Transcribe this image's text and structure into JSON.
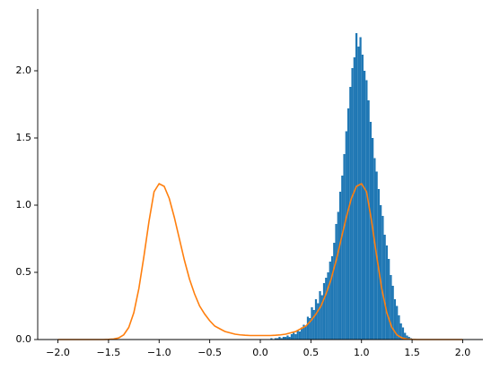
{
  "chart_data": {
    "type": "histogram",
    "xlim": [
      -2.2,
      2.2
    ],
    "ylim": [
      0,
      2.46
    ],
    "xticks": [
      {
        "value": -2.0,
        "label": "−2.0"
      },
      {
        "value": -1.5,
        "label": "−1.5"
      },
      {
        "value": -1.0,
        "label": "−1.0"
      },
      {
        "value": -0.5,
        "label": "−0.5"
      },
      {
        "value": 0.0,
        "label": "0.0"
      },
      {
        "value": 0.5,
        "label": "0.5"
      },
      {
        "value": 1.0,
        "label": "1.0"
      },
      {
        "value": 1.5,
        "label": "1.5"
      },
      {
        "value": 2.0,
        "label": "2.0"
      }
    ],
    "yticks": [
      {
        "value": 0.0,
        "label": "0.0"
      },
      {
        "value": 0.5,
        "label": "0.5"
      },
      {
        "value": 1.0,
        "label": "1.0"
      },
      {
        "value": 1.5,
        "label": "1.5"
      },
      {
        "value": 2.0,
        "label": "2.0"
      }
    ],
    "layers": [
      {
        "type": "histogram",
        "color": "#1f77b4",
        "bins": [
          0.1,
          0.12,
          0.14,
          0.16,
          0.18,
          0.2,
          0.22,
          0.24,
          0.26,
          0.28,
          0.3,
          0.32,
          0.34,
          0.36,
          0.38,
          0.4,
          0.42,
          0.44,
          0.46,
          0.48,
          0.5,
          0.52,
          0.54,
          0.56,
          0.58,
          0.6,
          0.62,
          0.64,
          0.66,
          0.68,
          0.7,
          0.72,
          0.74,
          0.76,
          0.78,
          0.8,
          0.82,
          0.84,
          0.86,
          0.88,
          0.9,
          0.92,
          0.94,
          0.96,
          0.98,
          1.0,
          1.02,
          1.04,
          1.06,
          1.08,
          1.1,
          1.12,
          1.14,
          1.16,
          1.18,
          1.2,
          1.22,
          1.24,
          1.26,
          1.28,
          1.3,
          1.32,
          1.34,
          1.36,
          1.38,
          1.4,
          1.42,
          1.44,
          1.46,
          1.48,
          1.5
        ],
        "values": [
          0.01,
          0,
          0.01,
          0.01,
          0.02,
          0.01,
          0.02,
          0.02,
          0.03,
          0.02,
          0.04,
          0.05,
          0.04,
          0.07,
          0.06,
          0.09,
          0.11,
          0.1,
          0.17,
          0.16,
          0.24,
          0.22,
          0.3,
          0.27,
          0.36,
          0.33,
          0.42,
          0.46,
          0.5,
          0.58,
          0.62,
          0.72,
          0.86,
          0.95,
          1.1,
          1.22,
          1.38,
          1.55,
          1.72,
          1.88,
          2.02,
          2.1,
          2.28,
          2.18,
          2.25,
          2.12,
          2.0,
          1.93,
          1.78,
          1.62,
          1.5,
          1.35,
          1.25,
          1.12,
          1.0,
          0.92,
          0.78,
          0.7,
          0.6,
          0.48,
          0.4,
          0.3,
          0.25,
          0.18,
          0.12,
          0.09,
          0.05,
          0.03,
          0.02,
          0.01
        ]
      },
      {
        "type": "line",
        "color": "#ff7f0e",
        "x": [
          -2.0,
          -1.95,
          -1.9,
          -1.85,
          -1.8,
          -1.75,
          -1.7,
          -1.65,
          -1.6,
          -1.55,
          -1.5,
          -1.45,
          -1.4,
          -1.35,
          -1.3,
          -1.25,
          -1.2,
          -1.15,
          -1.1,
          -1.05,
          -1.0,
          -0.95,
          -0.9,
          -0.85,
          -0.8,
          -0.75,
          -0.7,
          -0.65,
          -0.6,
          -0.55,
          -0.5,
          -0.45,
          -0.4,
          -0.35,
          -0.3,
          -0.25,
          -0.2,
          -0.15,
          -0.1,
          -0.05,
          0.0,
          0.05,
          0.1,
          0.15,
          0.2,
          0.25,
          0.3,
          0.35,
          0.4,
          0.45,
          0.5,
          0.55,
          0.6,
          0.65,
          0.7,
          0.75,
          0.8,
          0.85,
          0.9,
          0.95,
          1.0,
          1.05,
          1.1,
          1.15,
          1.2,
          1.25,
          1.3,
          1.35,
          1.4,
          1.45,
          1.5,
          1.55,
          1.6,
          1.65,
          1.7,
          1.75,
          1.8,
          1.85,
          1.9,
          1.95,
          2.0
        ],
        "values": [
          0,
          0,
          0,
          0,
          0,
          0,
          0,
          0,
          0,
          0,
          0.001,
          0.004,
          0.012,
          0.035,
          0.09,
          0.2,
          0.38,
          0.62,
          0.88,
          1.1,
          1.16,
          1.14,
          1.05,
          0.91,
          0.75,
          0.59,
          0.45,
          0.34,
          0.25,
          0.19,
          0.14,
          0.1,
          0.08,
          0.06,
          0.05,
          0.04,
          0.035,
          0.032,
          0.03,
          0.03,
          0.03,
          0.03,
          0.03,
          0.032,
          0.035,
          0.04,
          0.05,
          0.06,
          0.08,
          0.1,
          0.14,
          0.19,
          0.25,
          0.34,
          0.45,
          0.59,
          0.75,
          0.91,
          1.05,
          1.14,
          1.16,
          1.1,
          0.88,
          0.62,
          0.38,
          0.2,
          0.09,
          0.035,
          0.012,
          0.004,
          0.001,
          0,
          0,
          0,
          0,
          0,
          0,
          0,
          0,
          0,
          0
        ]
      }
    ]
  }
}
